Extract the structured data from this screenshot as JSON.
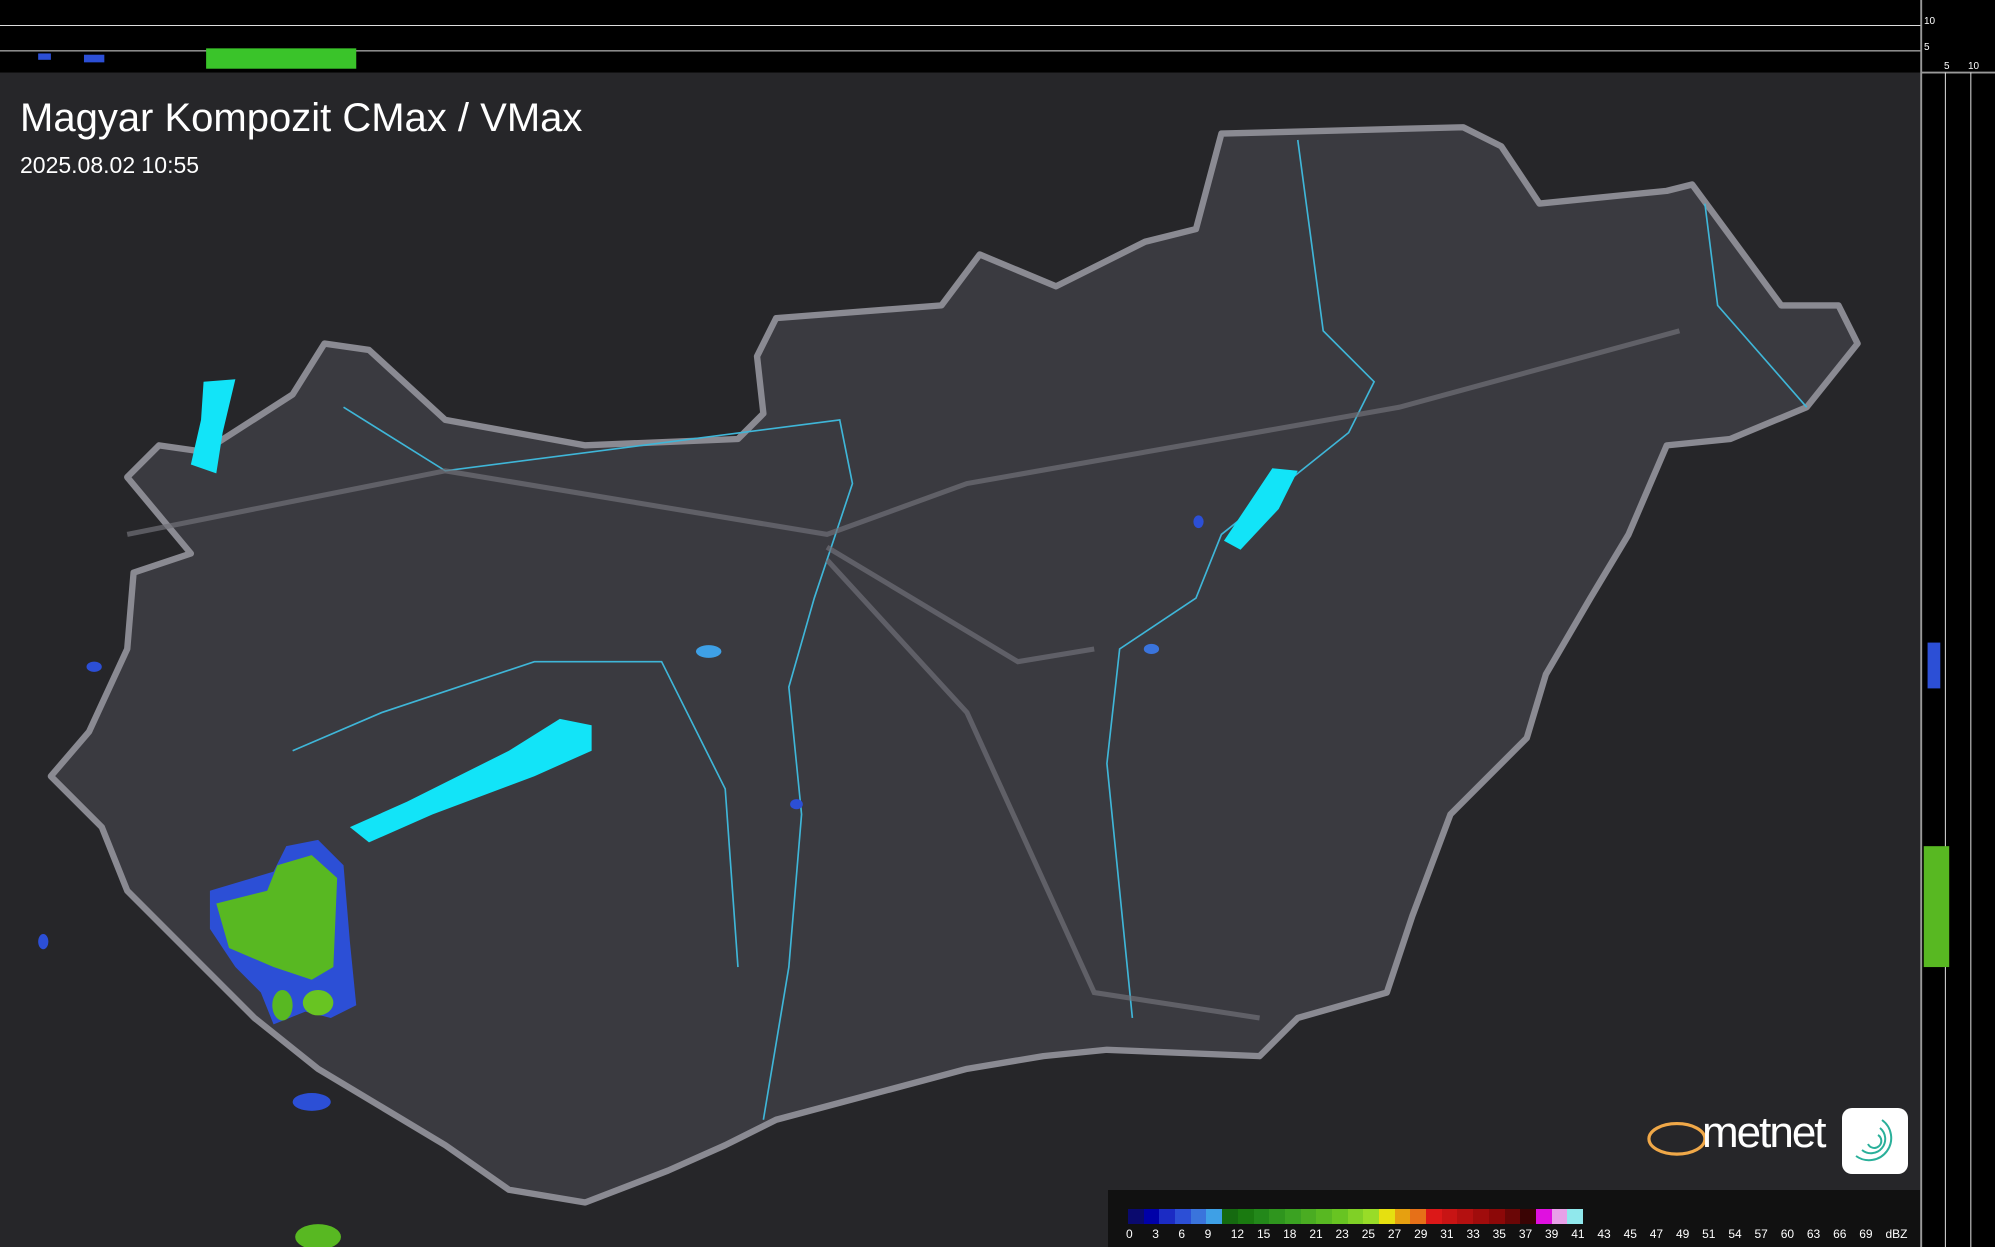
{
  "header": {
    "title": "Magyar Kompozit CMax / VMax",
    "timestamp": "2025.08.02 10:55"
  },
  "profile_axes": {
    "top": [
      "10",
      "5"
    ],
    "right": [
      "5",
      "10"
    ]
  },
  "legend": {
    "unit": "dBZ",
    "labels": [
      "0",
      "3",
      "6",
      "9",
      "12",
      "15",
      "18",
      "21",
      "23",
      "25",
      "27",
      "29",
      "31",
      "33",
      "35",
      "37",
      "39",
      "41",
      "43",
      "45",
      "47",
      "49",
      "51",
      "54",
      "57",
      "60",
      "63",
      "66",
      "69"
    ],
    "colors": [
      "#0a0a6e",
      "#0000a8",
      "#1b2bc4",
      "#2c4fd6",
      "#3a74dc",
      "#3ea0e6",
      "#156a10",
      "#1a7a10",
      "#23881a",
      "#2f951e",
      "#3ba222",
      "#4aac22",
      "#58b822",
      "#68c422",
      "#80d026",
      "#98dc28",
      "#e6e010",
      "#e6a010",
      "#e67018",
      "#dc1818",
      "#c81414",
      "#b41010",
      "#a00c0c",
      "#8c0808",
      "#6a0606",
      "#3a0404",
      "#e010e0",
      "#e8a0e8",
      "#90e8ec"
    ]
  },
  "branding": {
    "logo_text": "metnet"
  },
  "colors": {
    "country_fill": "#3a3a40",
    "border": "#8a8a92",
    "river": "#3fb6d8",
    "lake": "#12e4f8"
  }
}
